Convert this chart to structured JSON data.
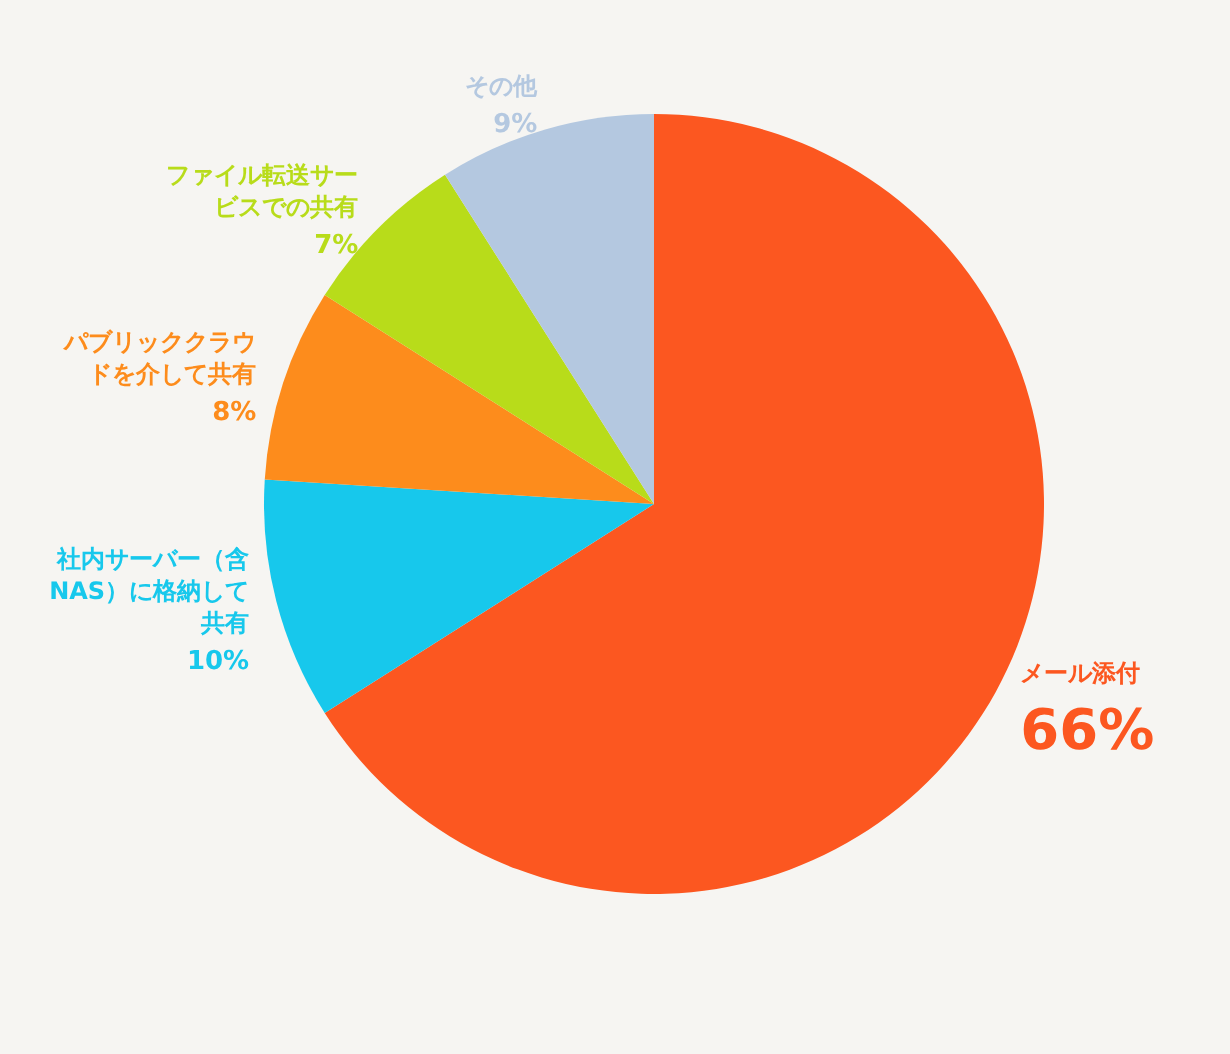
{
  "chart_data": {
    "type": "pie",
    "categories": [
      "メール添付",
      "社内サーバー（含NAS）に格納して共有",
      "パブリッククラウドを介して共有",
      "ファイル転送サービスでの共有",
      "その他"
    ],
    "values": [
      66,
      10,
      8,
      7,
      9
    ],
    "value_labels": [
      "66%",
      "10%",
      "8%",
      "7%",
      "9%"
    ],
    "colors": [
      "#fc5720",
      "#17c8ec",
      "#fd8c1c",
      "#b8dc1a",
      "#b4c8e0"
    ],
    "legend": false
  }
}
